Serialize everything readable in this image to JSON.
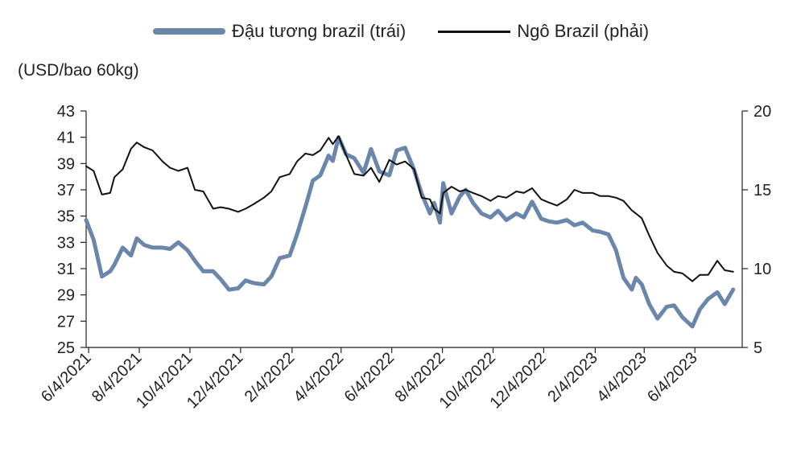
{
  "chart_data": {
    "type": "line",
    "ylabel": "(USD/bao 60kg)",
    "x_ticks": [
      "6/4/2021",
      "8/4/2021",
      "10/4/2021",
      "12/4/2021",
      "2/4/2022",
      "4/4/2022",
      "6/4/2022",
      "8/4/2022",
      "10/4/2022",
      "12/4/2022",
      "2/4/2023",
      "4/4/2023",
      "6/4/2023"
    ],
    "x_range": [
      "2021-06-01",
      "2023-07-31"
    ],
    "y_left_ticks": [
      43,
      41,
      39,
      37,
      35,
      33,
      31,
      29,
      27,
      25
    ],
    "y_left_range": [
      25,
      43
    ],
    "y_right_ticks": [
      20,
      15,
      10,
      5
    ],
    "y_right_range": [
      5,
      20
    ],
    "legend_position": "top",
    "series": [
      {
        "name": "Đậu tương brazil (trái)",
        "axis": "left",
        "color": "#6a86aa",
        "points": [
          [
            "2021-06-01",
            34.7
          ],
          [
            "2021-06-10",
            33.2
          ],
          [
            "2021-06-20",
            30.4
          ],
          [
            "2021-06-30",
            30.8
          ],
          [
            "2021-07-05",
            31.3
          ],
          [
            "2021-07-15",
            32.6
          ],
          [
            "2021-07-25",
            32.0
          ],
          [
            "2021-08-01",
            33.3
          ],
          [
            "2021-08-10",
            32.8
          ],
          [
            "2021-08-20",
            32.6
          ],
          [
            "2021-09-01",
            32.6
          ],
          [
            "2021-09-10",
            32.5
          ],
          [
            "2021-09-20",
            33.0
          ],
          [
            "2021-10-01",
            32.4
          ],
          [
            "2021-10-10",
            31.6
          ],
          [
            "2021-10-20",
            30.8
          ],
          [
            "2021-11-01",
            30.8
          ],
          [
            "2021-11-10",
            30.2
          ],
          [
            "2021-11-20",
            29.4
          ],
          [
            "2021-12-01",
            29.5
          ],
          [
            "2021-12-10",
            30.1
          ],
          [
            "2021-12-20",
            29.9
          ],
          [
            "2022-01-01",
            29.8
          ],
          [
            "2022-01-10",
            30.4
          ],
          [
            "2022-01-20",
            31.8
          ],
          [
            "2022-02-01",
            32.0
          ],
          [
            "2022-02-10",
            33.6
          ],
          [
            "2022-02-20",
            35.7
          ],
          [
            "2022-03-01",
            37.7
          ],
          [
            "2022-03-10",
            38.1
          ],
          [
            "2022-03-20",
            39.6
          ],
          [
            "2022-03-25",
            39.2
          ],
          [
            "2022-04-01",
            41.0
          ],
          [
            "2022-04-10",
            39.7
          ],
          [
            "2022-04-20",
            39.4
          ],
          [
            "2022-05-01",
            38.3
          ],
          [
            "2022-05-10",
            40.1
          ],
          [
            "2022-05-20",
            38.4
          ],
          [
            "2022-06-01",
            38.1
          ],
          [
            "2022-06-10",
            40.0
          ],
          [
            "2022-06-20",
            40.2
          ],
          [
            "2022-07-01",
            38.5
          ],
          [
            "2022-07-10",
            36.7
          ],
          [
            "2022-07-20",
            35.2
          ],
          [
            "2022-07-25",
            36.0
          ],
          [
            "2022-08-01",
            34.5
          ],
          [
            "2022-08-05",
            37.5
          ],
          [
            "2022-08-15",
            35.2
          ],
          [
            "2022-08-25",
            36.5
          ],
          [
            "2022-09-01",
            37.0
          ],
          [
            "2022-09-10",
            36.0
          ],
          [
            "2022-09-20",
            35.2
          ],
          [
            "2022-10-01",
            34.9
          ],
          [
            "2022-10-10",
            35.4
          ],
          [
            "2022-10-20",
            34.7
          ],
          [
            "2022-11-01",
            35.2
          ],
          [
            "2022-11-10",
            34.9
          ],
          [
            "2022-11-20",
            36.1
          ],
          [
            "2022-12-01",
            34.8
          ],
          [
            "2022-12-10",
            34.6
          ],
          [
            "2022-12-20",
            34.5
          ],
          [
            "2023-01-01",
            34.7
          ],
          [
            "2023-01-10",
            34.3
          ],
          [
            "2023-01-20",
            34.5
          ],
          [
            "2023-02-01",
            33.9
          ],
          [
            "2023-02-10",
            33.8
          ],
          [
            "2023-02-20",
            33.6
          ],
          [
            "2023-03-01",
            32.4
          ],
          [
            "2023-03-10",
            30.3
          ],
          [
            "2023-03-20",
            29.4
          ],
          [
            "2023-03-25",
            30.3
          ],
          [
            "2023-04-01",
            29.8
          ],
          [
            "2023-04-10",
            28.3
          ],
          [
            "2023-04-20",
            27.2
          ],
          [
            "2023-05-01",
            28.1
          ],
          [
            "2023-05-10",
            28.2
          ],
          [
            "2023-05-20",
            27.3
          ],
          [
            "2023-06-01",
            26.6
          ],
          [
            "2023-06-10",
            27.9
          ],
          [
            "2023-06-20",
            28.7
          ],
          [
            "2023-07-01",
            29.2
          ],
          [
            "2023-07-10",
            28.3
          ],
          [
            "2023-07-20",
            29.4
          ]
        ]
      },
      {
        "name": "Ngô Brazil (phải)",
        "axis": "right",
        "color": "#111111",
        "points": [
          [
            "2021-06-01",
            16.5
          ],
          [
            "2021-06-10",
            16.2
          ],
          [
            "2021-06-20",
            14.7
          ],
          [
            "2021-06-30",
            14.8
          ],
          [
            "2021-07-05",
            15.8
          ],
          [
            "2021-07-15",
            16.3
          ],
          [
            "2021-07-25",
            17.6
          ],
          [
            "2021-08-01",
            18.0
          ],
          [
            "2021-08-10",
            17.7
          ],
          [
            "2021-08-20",
            17.5
          ],
          [
            "2021-09-01",
            16.8
          ],
          [
            "2021-09-10",
            16.4
          ],
          [
            "2021-09-20",
            16.2
          ],
          [
            "2021-10-01",
            16.4
          ],
          [
            "2021-10-10",
            15.0
          ],
          [
            "2021-10-20",
            14.9
          ],
          [
            "2021-11-01",
            13.8
          ],
          [
            "2021-11-10",
            13.9
          ],
          [
            "2021-11-20",
            13.8
          ],
          [
            "2021-12-01",
            13.6
          ],
          [
            "2021-12-10",
            13.8
          ],
          [
            "2021-12-20",
            14.1
          ],
          [
            "2022-01-01",
            14.5
          ],
          [
            "2022-01-10",
            14.9
          ],
          [
            "2022-01-20",
            15.8
          ],
          [
            "2022-02-01",
            16.0
          ],
          [
            "2022-02-10",
            16.8
          ],
          [
            "2022-02-20",
            17.3
          ],
          [
            "2022-03-01",
            17.2
          ],
          [
            "2022-03-10",
            17.5
          ],
          [
            "2022-03-20",
            18.3
          ],
          [
            "2022-03-25",
            17.9
          ],
          [
            "2022-04-01",
            18.4
          ],
          [
            "2022-04-10",
            17.2
          ],
          [
            "2022-04-20",
            16.0
          ],
          [
            "2022-05-01",
            15.9
          ],
          [
            "2022-05-10",
            16.4
          ],
          [
            "2022-05-20",
            15.5
          ],
          [
            "2022-06-01",
            16.9
          ],
          [
            "2022-06-10",
            16.6
          ],
          [
            "2022-06-20",
            16.8
          ],
          [
            "2022-07-01",
            16.3
          ],
          [
            "2022-07-10",
            14.5
          ],
          [
            "2022-07-20",
            14.4
          ],
          [
            "2022-07-25",
            13.8
          ],
          [
            "2022-08-01",
            13.5
          ],
          [
            "2022-08-05",
            14.8
          ],
          [
            "2022-08-15",
            15.2
          ],
          [
            "2022-08-25",
            14.9
          ],
          [
            "2022-09-01",
            15.0
          ],
          [
            "2022-09-10",
            14.8
          ],
          [
            "2022-09-20",
            14.6
          ],
          [
            "2022-10-01",
            14.3
          ],
          [
            "2022-10-10",
            14.6
          ],
          [
            "2022-10-20",
            14.5
          ],
          [
            "2022-11-01",
            14.9
          ],
          [
            "2022-11-10",
            14.8
          ],
          [
            "2022-11-20",
            15.1
          ],
          [
            "2022-12-01",
            14.4
          ],
          [
            "2022-12-10",
            14.2
          ],
          [
            "2022-12-20",
            14.0
          ],
          [
            "2023-01-01",
            14.4
          ],
          [
            "2023-01-10",
            15.0
          ],
          [
            "2023-01-20",
            14.8
          ],
          [
            "2023-02-01",
            14.8
          ],
          [
            "2023-02-10",
            14.6
          ],
          [
            "2023-02-20",
            14.6
          ],
          [
            "2023-03-01",
            14.5
          ],
          [
            "2023-03-10",
            14.3
          ],
          [
            "2023-03-20",
            13.7
          ],
          [
            "2023-03-25",
            13.5
          ],
          [
            "2023-04-01",
            13.2
          ],
          [
            "2023-04-10",
            12.1
          ],
          [
            "2023-04-20",
            11.0
          ],
          [
            "2023-05-01",
            10.2
          ],
          [
            "2023-05-10",
            9.8
          ],
          [
            "2023-05-20",
            9.7
          ],
          [
            "2023-06-01",
            9.2
          ],
          [
            "2023-06-10",
            9.6
          ],
          [
            "2023-06-20",
            9.6
          ],
          [
            "2023-07-01",
            10.5
          ],
          [
            "2023-07-10",
            9.9
          ],
          [
            "2023-07-20",
            9.8
          ]
        ]
      }
    ]
  }
}
